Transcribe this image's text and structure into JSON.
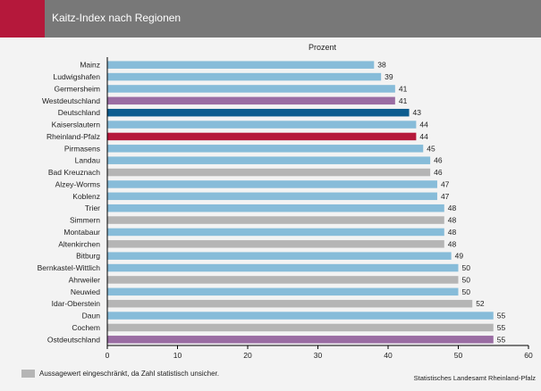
{
  "header": {
    "title": "Kaitz-Index nach Regionen"
  },
  "legend": {
    "label": "Aussagewert eingeschränkt, da Zahl statistisch unsicher."
  },
  "source": "Statistisches Landesamt Rheinland-Pfalz",
  "colors": {
    "regular": "#87bcd9",
    "uncertain": "#b5b5b5",
    "west_east": "#9a6da3",
    "germany": "#0d5c8e",
    "rlp": "#b5183b"
  },
  "chart_data": {
    "type": "bar",
    "orientation": "horizontal",
    "title": "Prozent",
    "xlabel": "",
    "ylabel": "",
    "xlim": [
      0,
      60
    ],
    "xticks": [
      0,
      10,
      20,
      30,
      40,
      50,
      60
    ],
    "grid": false,
    "categories": [
      "Mainz",
      "Ludwigshafen",
      "Germersheim",
      "Westdeutschland",
      "Deutschland",
      "Kaiserslautern",
      "Rheinland-Pfalz",
      "Pirmasens",
      "Landau",
      "Bad Kreuznach",
      "Alzey-Worms",
      "Koblenz",
      "Trier",
      "Simmern",
      "Montabaur",
      "Altenkirchen",
      "Bitburg",
      "Bernkastel-Wittlich",
      "Ahrweiler",
      "Neuwied",
      "Idar-Oberstein",
      "Daun",
      "Cochem",
      "Ostdeutschland"
    ],
    "values": [
      38,
      39,
      41,
      41,
      43,
      44,
      44,
      45,
      46,
      46,
      47,
      47,
      48,
      48,
      48,
      48,
      49,
      50,
      50,
      50,
      52,
      55,
      55,
      55
    ],
    "bar_styles": [
      "regular",
      "regular",
      "regular",
      "west_east",
      "germany",
      "regular",
      "rlp",
      "regular",
      "regular",
      "uncertain",
      "regular",
      "regular",
      "regular",
      "uncertain",
      "regular",
      "uncertain",
      "regular",
      "regular",
      "uncertain",
      "regular",
      "uncertain",
      "regular",
      "uncertain",
      "west_east"
    ]
  }
}
